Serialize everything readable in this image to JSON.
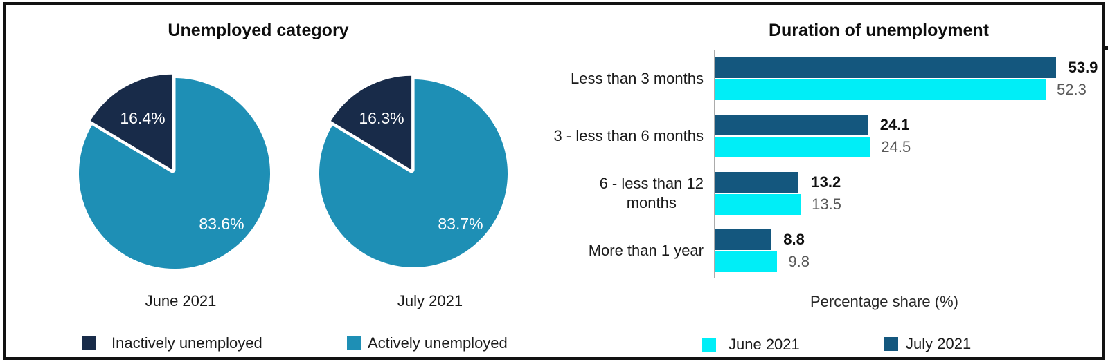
{
  "colors": {
    "pie_inactive_navy": "#182B49",
    "pie_active_teal": "#1E8FB5",
    "bar_july_dark_blue": "#14577E",
    "bar_june_cyan": "#00EEF7",
    "value_label_gray": "#595959",
    "text_dark": "#1a1a1a",
    "axis_gray": "#ababab"
  },
  "chart_data": [
    {
      "type": "pie",
      "title": "Unemployed category",
      "slice_names": [
        "Inactively unemployed",
        "Actively unemployed"
      ],
      "slice_colors": [
        "#182B49",
        "#1E8FB5"
      ],
      "pies": [
        {
          "label": "June 2021",
          "values": [
            16.4,
            83.6
          ],
          "display": [
            "16.4%",
            "83.6%"
          ]
        },
        {
          "label": "July 2021",
          "values": [
            16.3,
            83.7
          ],
          "display": [
            "16.3%",
            "83.7%"
          ]
        }
      ],
      "legend": [
        "Inactively unemployed",
        "Actively unemployed"
      ],
      "legend_colors": [
        "#182B49",
        "#1E8FB5"
      ]
    },
    {
      "type": "bar",
      "orientation": "horizontal",
      "title": "Duration of unemployment",
      "xlabel": "Percentage share (%)",
      "xlim": [
        0,
        60
      ],
      "grid": false,
      "legend_position": "bottom",
      "categories": [
        "Less than 3 months",
        "3 - less than 6 months",
        "6 - less than 12\nmonths",
        "More than 1 year"
      ],
      "series": [
        {
          "name": "July 2021",
          "color": "#14577E",
          "values": [
            53.9,
            24.1,
            13.2,
            8.8
          ],
          "label_style": "bold"
        },
        {
          "name": "June 2021",
          "color": "#00EEF7",
          "values": [
            52.3,
            24.5,
            13.5,
            9.8
          ],
          "label_style": "gray"
        }
      ],
      "legend": [
        "June 2021",
        "July 2021"
      ],
      "legend_colors": [
        "#00EEF7",
        "#14577E"
      ]
    }
  ]
}
